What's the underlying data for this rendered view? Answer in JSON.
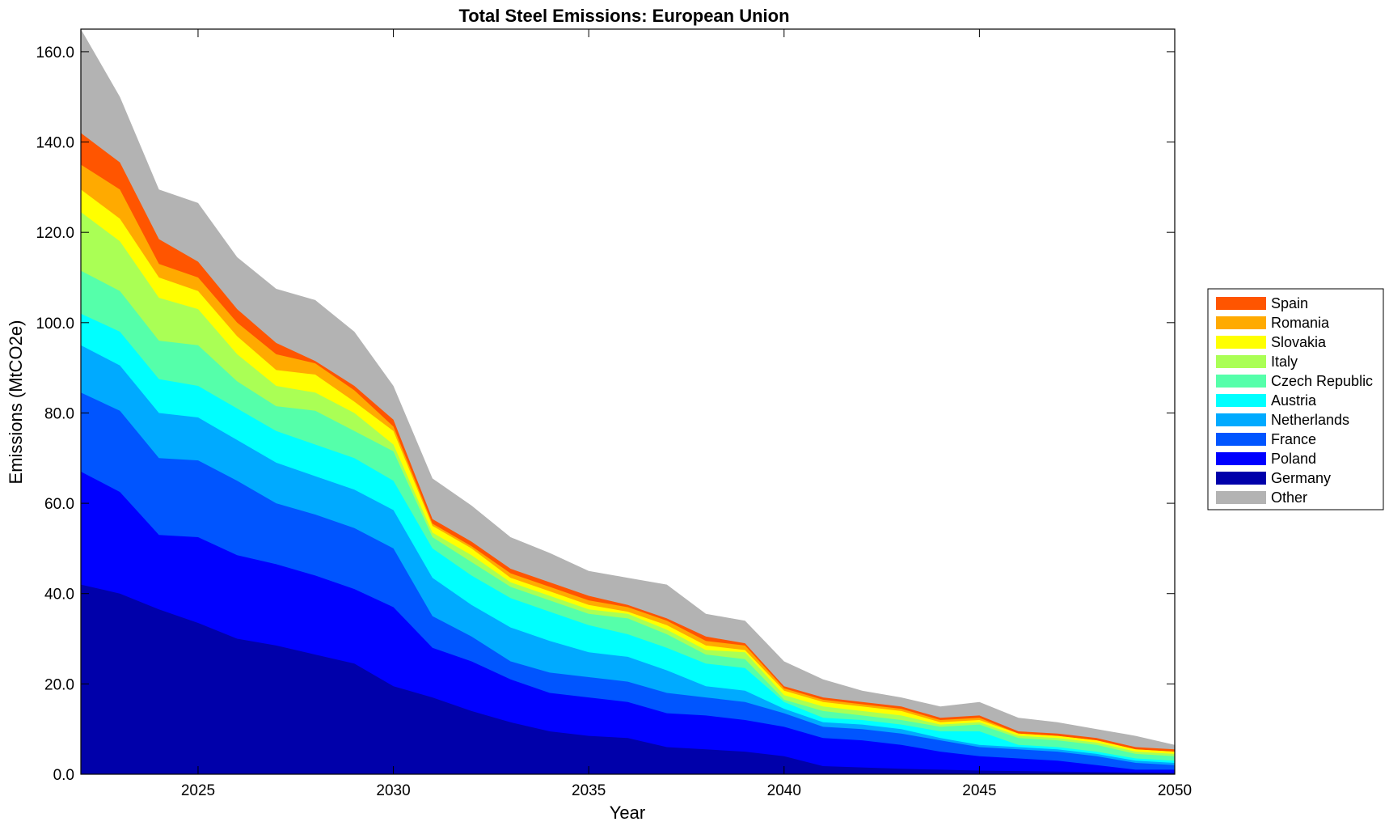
{
  "chart_data": {
    "type": "area",
    "title": "Total Steel Emissions: European Union",
    "xlabel": "Year",
    "ylabel": "Emissions (MtCO2e)",
    "xlim": [
      2022,
      2050
    ],
    "ylim": [
      0,
      165
    ],
    "xticks": [
      2025,
      2030,
      2035,
      2040,
      2045,
      2050
    ],
    "yticks": [
      0,
      20,
      40,
      60,
      80,
      100,
      120,
      140,
      160
    ],
    "ytick_labels": [
      "0.0",
      "20.0",
      "40.0",
      "60.0",
      "80.0",
      "100.0",
      "120.0",
      "140.0",
      "160.0"
    ],
    "stacked": true,
    "legend_position": "right",
    "x": [
      2022,
      2023,
      2024,
      2025,
      2026,
      2027,
      2028,
      2029,
      2030,
      2031,
      2032,
      2033,
      2034,
      2035,
      2036,
      2037,
      2038,
      2039,
      2040,
      2041,
      2042,
      2043,
      2044,
      2045,
      2046,
      2047,
      2048,
      2049,
      2050
    ],
    "series": [
      {
        "name": "Germany",
        "color": "#0000AA",
        "cumulative": [
          42,
          40,
          36.5,
          33.5,
          30,
          28.5,
          26.5,
          24.5,
          19.5,
          17,
          14,
          11.5,
          9.5,
          8.5,
          8,
          6,
          5.5,
          5,
          4,
          1.8,
          1.5,
          1.2,
          1,
          0.8,
          0.7,
          0.6,
          0.5,
          0.4,
          0.3
        ]
      },
      {
        "name": "Poland",
        "color": "#0000FF",
        "cumulative": [
          67,
          62.5,
          53,
          52.5,
          48.5,
          46.5,
          44,
          41,
          37,
          28,
          25,
          21,
          18,
          17,
          16,
          13.5,
          13,
          12,
          10.5,
          8,
          7.5,
          6.5,
          5,
          4,
          3.5,
          3,
          2,
          1,
          1
        ]
      },
      {
        "name": "France",
        "color": "#0055FF",
        "cumulative": [
          84.5,
          80.5,
          70,
          69.5,
          65,
          60,
          57.5,
          54.5,
          50,
          35,
          30.5,
          25,
          22.5,
          21.5,
          20.5,
          18,
          17,
          16,
          13.5,
          10.5,
          10,
          9,
          7.5,
          6,
          5.5,
          5,
          4,
          2.5,
          2
        ]
      },
      {
        "name": "Netherlands",
        "color": "#00AAFF",
        "cumulative": [
          95,
          90.5,
          80,
          79,
          74,
          69,
          66,
          63,
          58.5,
          43.5,
          37.5,
          32.5,
          29.5,
          27,
          26,
          23,
          19.5,
          18.5,
          14.5,
          11.5,
          11,
          10,
          8,
          6.5,
          6,
          5.5,
          4.5,
          3,
          2.5
        ]
      },
      {
        "name": "Austria",
        "color": "#00FFFF",
        "cumulative": [
          102,
          98,
          87.5,
          86,
          81,
          76,
          73,
          70,
          65,
          50,
          44,
          39,
          36,
          33,
          31,
          28,
          24.5,
          23.5,
          16,
          12.5,
          12,
          11,
          9.5,
          9.5,
          6.5,
          6,
          5,
          3.5,
          3
        ]
      },
      {
        "name": "Czech Republic",
        "color": "#55FFAA",
        "cumulative": [
          111.5,
          107,
          96,
          95,
          87,
          81.5,
          80.5,
          76,
          71.5,
          52.5,
          47,
          41.5,
          38.5,
          35.5,
          34.5,
          31,
          26.5,
          25.5,
          16.5,
          14,
          13,
          12,
          10.5,
          11,
          8,
          7.5,
          6.5,
          4.5,
          4
        ]
      },
      {
        "name": "Italy",
        "color": "#AAFF55",
        "cumulative": [
          124.5,
          118,
          105.5,
          103,
          93,
          86,
          84.5,
          80,
          73,
          53.5,
          48.5,
          42.5,
          39.5,
          36.5,
          35.5,
          32,
          27.5,
          27,
          17.5,
          15,
          14,
          13,
          11,
          11.5,
          8.5,
          8,
          7,
          5,
          4.5
        ]
      },
      {
        "name": "Slovakia",
        "color": "#FFFF00",
        "cumulative": [
          129.5,
          123,
          110,
          107,
          97,
          89.5,
          88.5,
          82.5,
          76,
          55,
          50,
          43.5,
          40.5,
          37.5,
          36,
          33,
          28.5,
          27.5,
          18.5,
          16,
          15,
          14,
          11.5,
          12,
          9,
          8.5,
          7.5,
          5.5,
          5
        ]
      },
      {
        "name": "Romania",
        "color": "#FFAA00",
        "cumulative": [
          135,
          129.5,
          113,
          110,
          100,
          93,
          91,
          85,
          77,
          55.5,
          50.5,
          44.5,
          41.5,
          38.5,
          37,
          34,
          29.5,
          28.5,
          19,
          16.5,
          15.5,
          14.5,
          12,
          12.5,
          9,
          8.5,
          7.5,
          5.5,
          5
        ]
      },
      {
        "name": "Spain",
        "color": "#FF5500",
        "cumulative": [
          142,
          135.5,
          118.5,
          113.5,
          103,
          95.5,
          91.5,
          86,
          78.5,
          56.5,
          51.5,
          45.5,
          42.5,
          39.5,
          37.5,
          34.5,
          30.5,
          29,
          19.5,
          17,
          16,
          15,
          12.5,
          13,
          9.5,
          9,
          8,
          6,
          5.5
        ]
      },
      {
        "name": "Other",
        "color": "#B3B3B3",
        "cumulative": [
          165,
          150,
          129.5,
          126.5,
          114.5,
          107.5,
          105,
          98,
          86,
          65.5,
          59.5,
          52.5,
          49,
          45,
          43.5,
          42,
          35.5,
          34,
          25,
          21,
          18.5,
          17,
          15,
          16,
          12.5,
          11.5,
          10,
          8.5,
          6.5
        ]
      }
    ]
  }
}
